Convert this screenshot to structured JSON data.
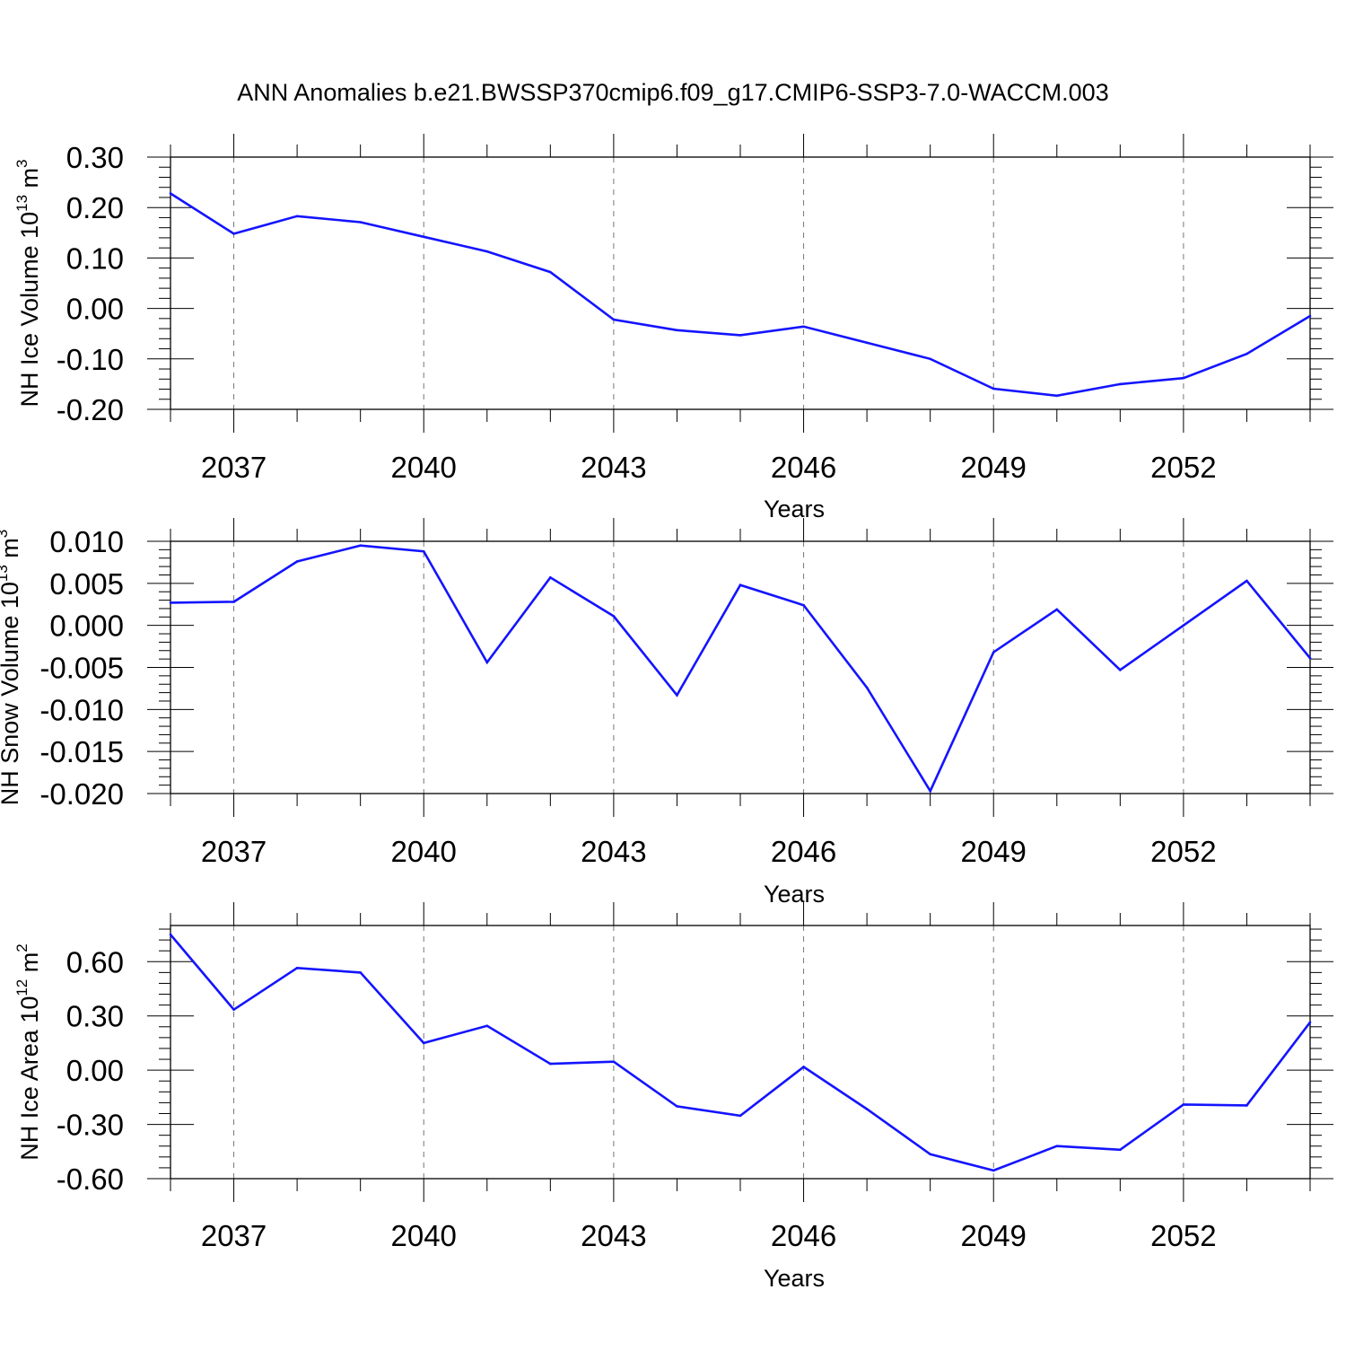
{
  "title": "ANN Anomalies b.e21.BWSSP370cmip6.f09_g17.CMIP6-SSP3-7.0-WACCM.003",
  "colors": {
    "line": "#1414ff",
    "axis": "#000000",
    "grid": "#777777"
  },
  "chart_data": [
    {
      "type": "line",
      "name": "NH Ice Volume",
      "ylabel": {
        "text": "NH Ice Volume 10",
        "sup": "13",
        "unit": " m",
        "unit_sup": "3"
      },
      "xlabel": "Years",
      "xlim": [
        2036,
        2054
      ],
      "xticks": [
        2037,
        2040,
        2043,
        2046,
        2049,
        2052
      ],
      "ylim": [
        -0.2,
        0.3
      ],
      "yticks": [
        -0.2,
        -0.1,
        0.0,
        0.1,
        0.2,
        0.3
      ],
      "ytick_labels": [
        "-0.20",
        "-0.10",
        "0.00",
        "0.10",
        "0.20",
        "0.30"
      ],
      "grid": "vertical dashed at x ticks",
      "x": [
        2036,
        2037,
        2038,
        2039,
        2040,
        2041,
        2042,
        2043,
        2044,
        2045,
        2046,
        2047,
        2048,
        2049,
        2050,
        2051,
        2052,
        2053,
        2054
      ],
      "values": [
        0.228,
        0.148,
        0.183,
        0.171,
        0.142,
        0.113,
        0.072,
        -0.022,
        -0.043,
        -0.053,
        -0.036,
        -0.068,
        -0.1,
        -0.159,
        -0.173,
        -0.15,
        -0.138,
        -0.09,
        -0.015
      ]
    },
    {
      "type": "line",
      "name": "NH Snow Volume",
      "ylabel": {
        "text": "NH Snow Volume 10",
        "sup": "13",
        "unit": " m",
        "unit_sup": "3"
      },
      "xlabel": "Years",
      "xlim": [
        2036,
        2054
      ],
      "xticks": [
        2037,
        2040,
        2043,
        2046,
        2049,
        2052
      ],
      "ylim": [
        -0.02,
        0.01
      ],
      "yticks": [
        -0.02,
        -0.015,
        -0.01,
        -0.005,
        0.0,
        0.005,
        0.01
      ],
      "ytick_labels": [
        "-0.020",
        "-0.015",
        "-0.010",
        "-0.005",
        "0.000",
        "0.005",
        "0.010"
      ],
      "grid": "vertical dashed at x ticks",
      "x": [
        2036,
        2037,
        2038,
        2039,
        2040,
        2041,
        2042,
        2043,
        2044,
        2045,
        2046,
        2047,
        2048,
        2049,
        2050,
        2051,
        2052,
        2053,
        2054
      ],
      "values": [
        0.0027,
        0.0028,
        0.0076,
        0.0095,
        0.0088,
        -0.0044,
        0.0057,
        0.0011,
        -0.0083,
        0.0048,
        0.0024,
        -0.0074,
        -0.0197,
        -0.0032,
        0.0019,
        -0.0053,
        0.0,
        0.0053,
        -0.0039
      ]
    },
    {
      "type": "line",
      "name": "NH Ice Area",
      "ylabel": {
        "text": "NH Ice Area 10",
        "sup": "12",
        "unit": " m",
        "unit_sup": "2"
      },
      "xlabel": "Years",
      "xlim": [
        2036,
        2054
      ],
      "xticks": [
        2037,
        2040,
        2043,
        2046,
        2049,
        2052
      ],
      "ylim": [
        -0.6,
        0.8
      ],
      "yticks": [
        -0.6,
        -0.3,
        0.0,
        0.3,
        0.6
      ],
      "ytick_labels": [
        "-0.60",
        "-0.30",
        "0.00",
        "0.30",
        "0.60"
      ],
      "grid": "vertical dashed at x ticks",
      "x": [
        2036,
        2037,
        2038,
        2039,
        2040,
        2041,
        2042,
        2043,
        2044,
        2045,
        2046,
        2047,
        2048,
        2049,
        2050,
        2051,
        2052,
        2053,
        2054
      ],
      "values": [
        0.75,
        0.335,
        0.565,
        0.54,
        0.15,
        0.245,
        0.035,
        0.047,
        -0.2,
        -0.252,
        0.018,
        -0.215,
        -0.465,
        -0.555,
        -0.42,
        -0.44,
        -0.19,
        -0.195,
        0.265
      ]
    }
  ]
}
